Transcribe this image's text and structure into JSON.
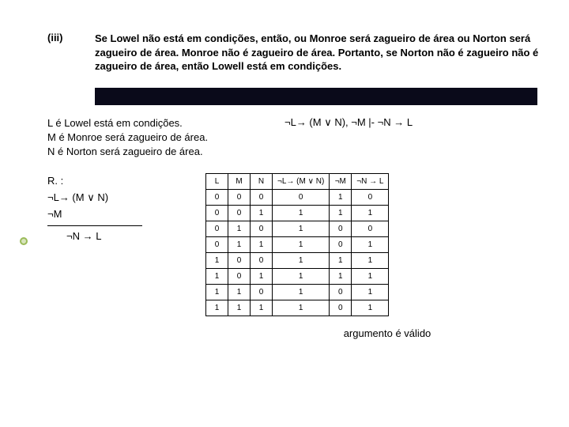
{
  "header": {
    "roman": "(iii)",
    "problem": "Se Lowel não está em condições, então, ou Monroe será zagueiro de área ou Norton será zagueiro de área. Monroe não é zagueiro de área. Portanto, se Norton não é zagueiro não é zagueiro de área, então Lowell está em condições."
  },
  "defs": {
    "l": "L é Lowel está em condições.",
    "m": "M é Monroe será zagueiro de área.",
    "n": "N é Norton será zagueiro de área."
  },
  "derivation": "¬L→ (M ∨ N), ¬M |- ¬N → L",
  "premises": {
    "label": "R. :",
    "p1": "¬L→ (M ∨ N)",
    "p2": "¬M",
    "conclusion": "¬N → L"
  },
  "table": {
    "columns": [
      "L",
      "M",
      "N",
      "¬L→ (M ∨ N)",
      "¬M",
      "¬N → L"
    ],
    "rows": [
      [
        "0",
        "0",
        "0",
        "0",
        "1",
        "0"
      ],
      [
        "0",
        "0",
        "1",
        "1",
        "1",
        "1"
      ],
      [
        "0",
        "1",
        "0",
        "1",
        "0",
        "0"
      ],
      [
        "0",
        "1",
        "1",
        "1",
        "0",
        "1"
      ],
      [
        "1",
        "0",
        "0",
        "1",
        "1",
        "1"
      ],
      [
        "1",
        "0",
        "1",
        "1",
        "1",
        "1"
      ],
      [
        "1",
        "1",
        "0",
        "1",
        "0",
        "1"
      ],
      [
        "1",
        "1",
        "1",
        "1",
        "0",
        "1"
      ]
    ]
  },
  "validity": "argumento é válido"
}
